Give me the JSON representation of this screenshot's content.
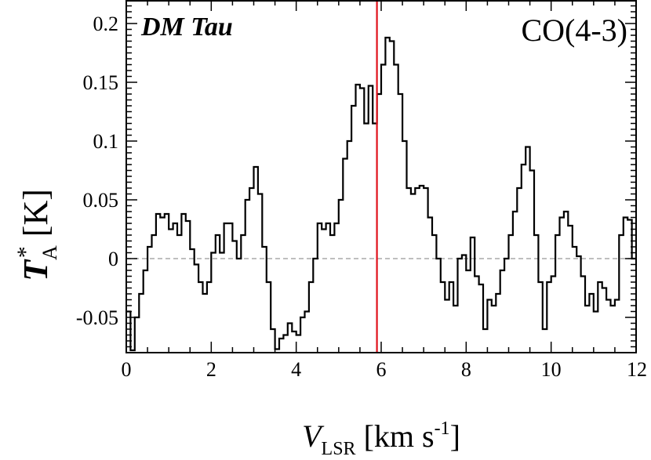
{
  "chart_data": {
    "type": "line",
    "step": true,
    "source_label": "DM Tau",
    "line_label": "CO(4-3)",
    "xlabel": {
      "symbol": "V",
      "subscript": "LSR",
      "unit": "[km s",
      "unit_exp": "-1",
      "unit_close": "]"
    },
    "ylabel": {
      "symbol": "T",
      "subscript": "A",
      "superscript": "*",
      "unit": "[K]"
    },
    "xlim": [
      0,
      12
    ],
    "ylim": [
      -0.08,
      0.22
    ],
    "xticks": [
      0,
      2,
      4,
      6,
      8,
      10,
      12
    ],
    "xtick_labels": [
      "0",
      "2",
      "4",
      "6",
      "8",
      "10",
      "12"
    ],
    "yticks": [
      -0.05,
      0,
      0.05,
      0.1,
      0.15,
      0.2
    ],
    "ytick_labels": [
      "-0.05",
      "0",
      "0.05",
      "0.1",
      "0.15",
      "0.2"
    ],
    "grid": false,
    "zero_line": true,
    "vline": {
      "x": 5.9,
      "color": "#e0101a"
    },
    "colors": {
      "spectrum": "#000000",
      "zero_line": "#aaaaaa"
    },
    "series": [
      {
        "x": [
          0.0,
          0.1,
          0.2,
          0.3,
          0.4,
          0.5,
          0.6,
          0.7,
          0.8,
          0.9,
          1.0,
          1.1,
          1.2,
          1.3,
          1.4,
          1.5,
          1.6,
          1.7,
          1.8,
          1.9,
          2.0,
          2.1,
          2.2,
          2.3,
          2.4,
          2.5,
          2.6,
          2.7,
          2.8,
          2.9,
          3.0,
          3.1,
          3.2,
          3.3,
          3.4,
          3.5,
          3.6,
          3.7,
          3.8,
          3.9,
          4.0,
          4.1,
          4.2,
          4.3,
          4.4,
          4.5,
          4.6,
          4.7,
          4.8,
          4.9,
          5.0,
          5.1,
          5.2,
          5.3,
          5.4,
          5.5,
          5.6,
          5.7,
          5.8,
          5.9,
          6.0,
          6.1,
          6.2,
          6.3,
          6.4,
          6.5,
          6.6,
          6.7,
          6.8,
          6.9,
          7.0,
          7.1,
          7.2,
          7.3,
          7.4,
          7.5,
          7.6,
          7.7,
          7.8,
          7.9,
          8.0,
          8.1,
          8.2,
          8.3,
          8.4,
          8.5,
          8.6,
          8.7,
          8.8,
          8.9,
          9.0,
          9.1,
          9.2,
          9.3,
          9.4,
          9.5,
          9.6,
          9.7,
          9.8,
          9.9,
          10.0,
          10.1,
          10.2,
          10.3,
          10.4,
          10.5,
          10.6,
          10.7,
          10.8,
          10.9,
          11.0,
          11.1,
          11.2,
          11.3,
          11.4,
          11.5,
          11.6,
          11.7,
          11.8,
          11.9
        ],
        "y": [
          -0.045,
          -0.078,
          -0.05,
          -0.03,
          -0.01,
          0.01,
          0.02,
          0.038,
          0.035,
          0.038,
          0.025,
          0.03,
          0.02,
          0.038,
          0.032,
          0.008,
          -0.005,
          -0.02,
          -0.03,
          -0.02,
          0.005,
          0.02,
          0.005,
          0.03,
          0.03,
          0.015,
          0.0,
          0.02,
          0.05,
          0.06,
          0.078,
          0.055,
          0.01,
          -0.02,
          -0.06,
          -0.077,
          -0.068,
          -0.065,
          -0.055,
          -0.062,
          -0.065,
          -0.05,
          -0.045,
          -0.02,
          0.0,
          0.03,
          0.025,
          0.03,
          0.02,
          0.03,
          0.05,
          0.085,
          0.1,
          0.13,
          0.148,
          0.145,
          0.115,
          0.147,
          0.115,
          0.14,
          0.165,
          0.188,
          0.185,
          0.165,
          0.14,
          0.1,
          0.06,
          0.055,
          0.06,
          0.062,
          0.06,
          0.035,
          0.02,
          0.0,
          -0.02,
          -0.035,
          -0.02,
          -0.04,
          0.0,
          0.003,
          -0.01,
          0.018,
          -0.015,
          -0.022,
          -0.06,
          -0.035,
          -0.04,
          -0.03,
          -0.01,
          0.0,
          0.02,
          0.04,
          0.06,
          0.08,
          0.095,
          0.075,
          0.02,
          -0.02,
          -0.06,
          -0.02,
          -0.015,
          0.02,
          0.035,
          0.04,
          0.028,
          0.01,
          0.002,
          -0.015,
          -0.04,
          -0.03,
          -0.045,
          -0.02,
          -0.025,
          -0.035,
          -0.04,
          -0.035,
          0.02,
          0.035,
          0.033,
          0.0
        ]
      }
    ]
  }
}
